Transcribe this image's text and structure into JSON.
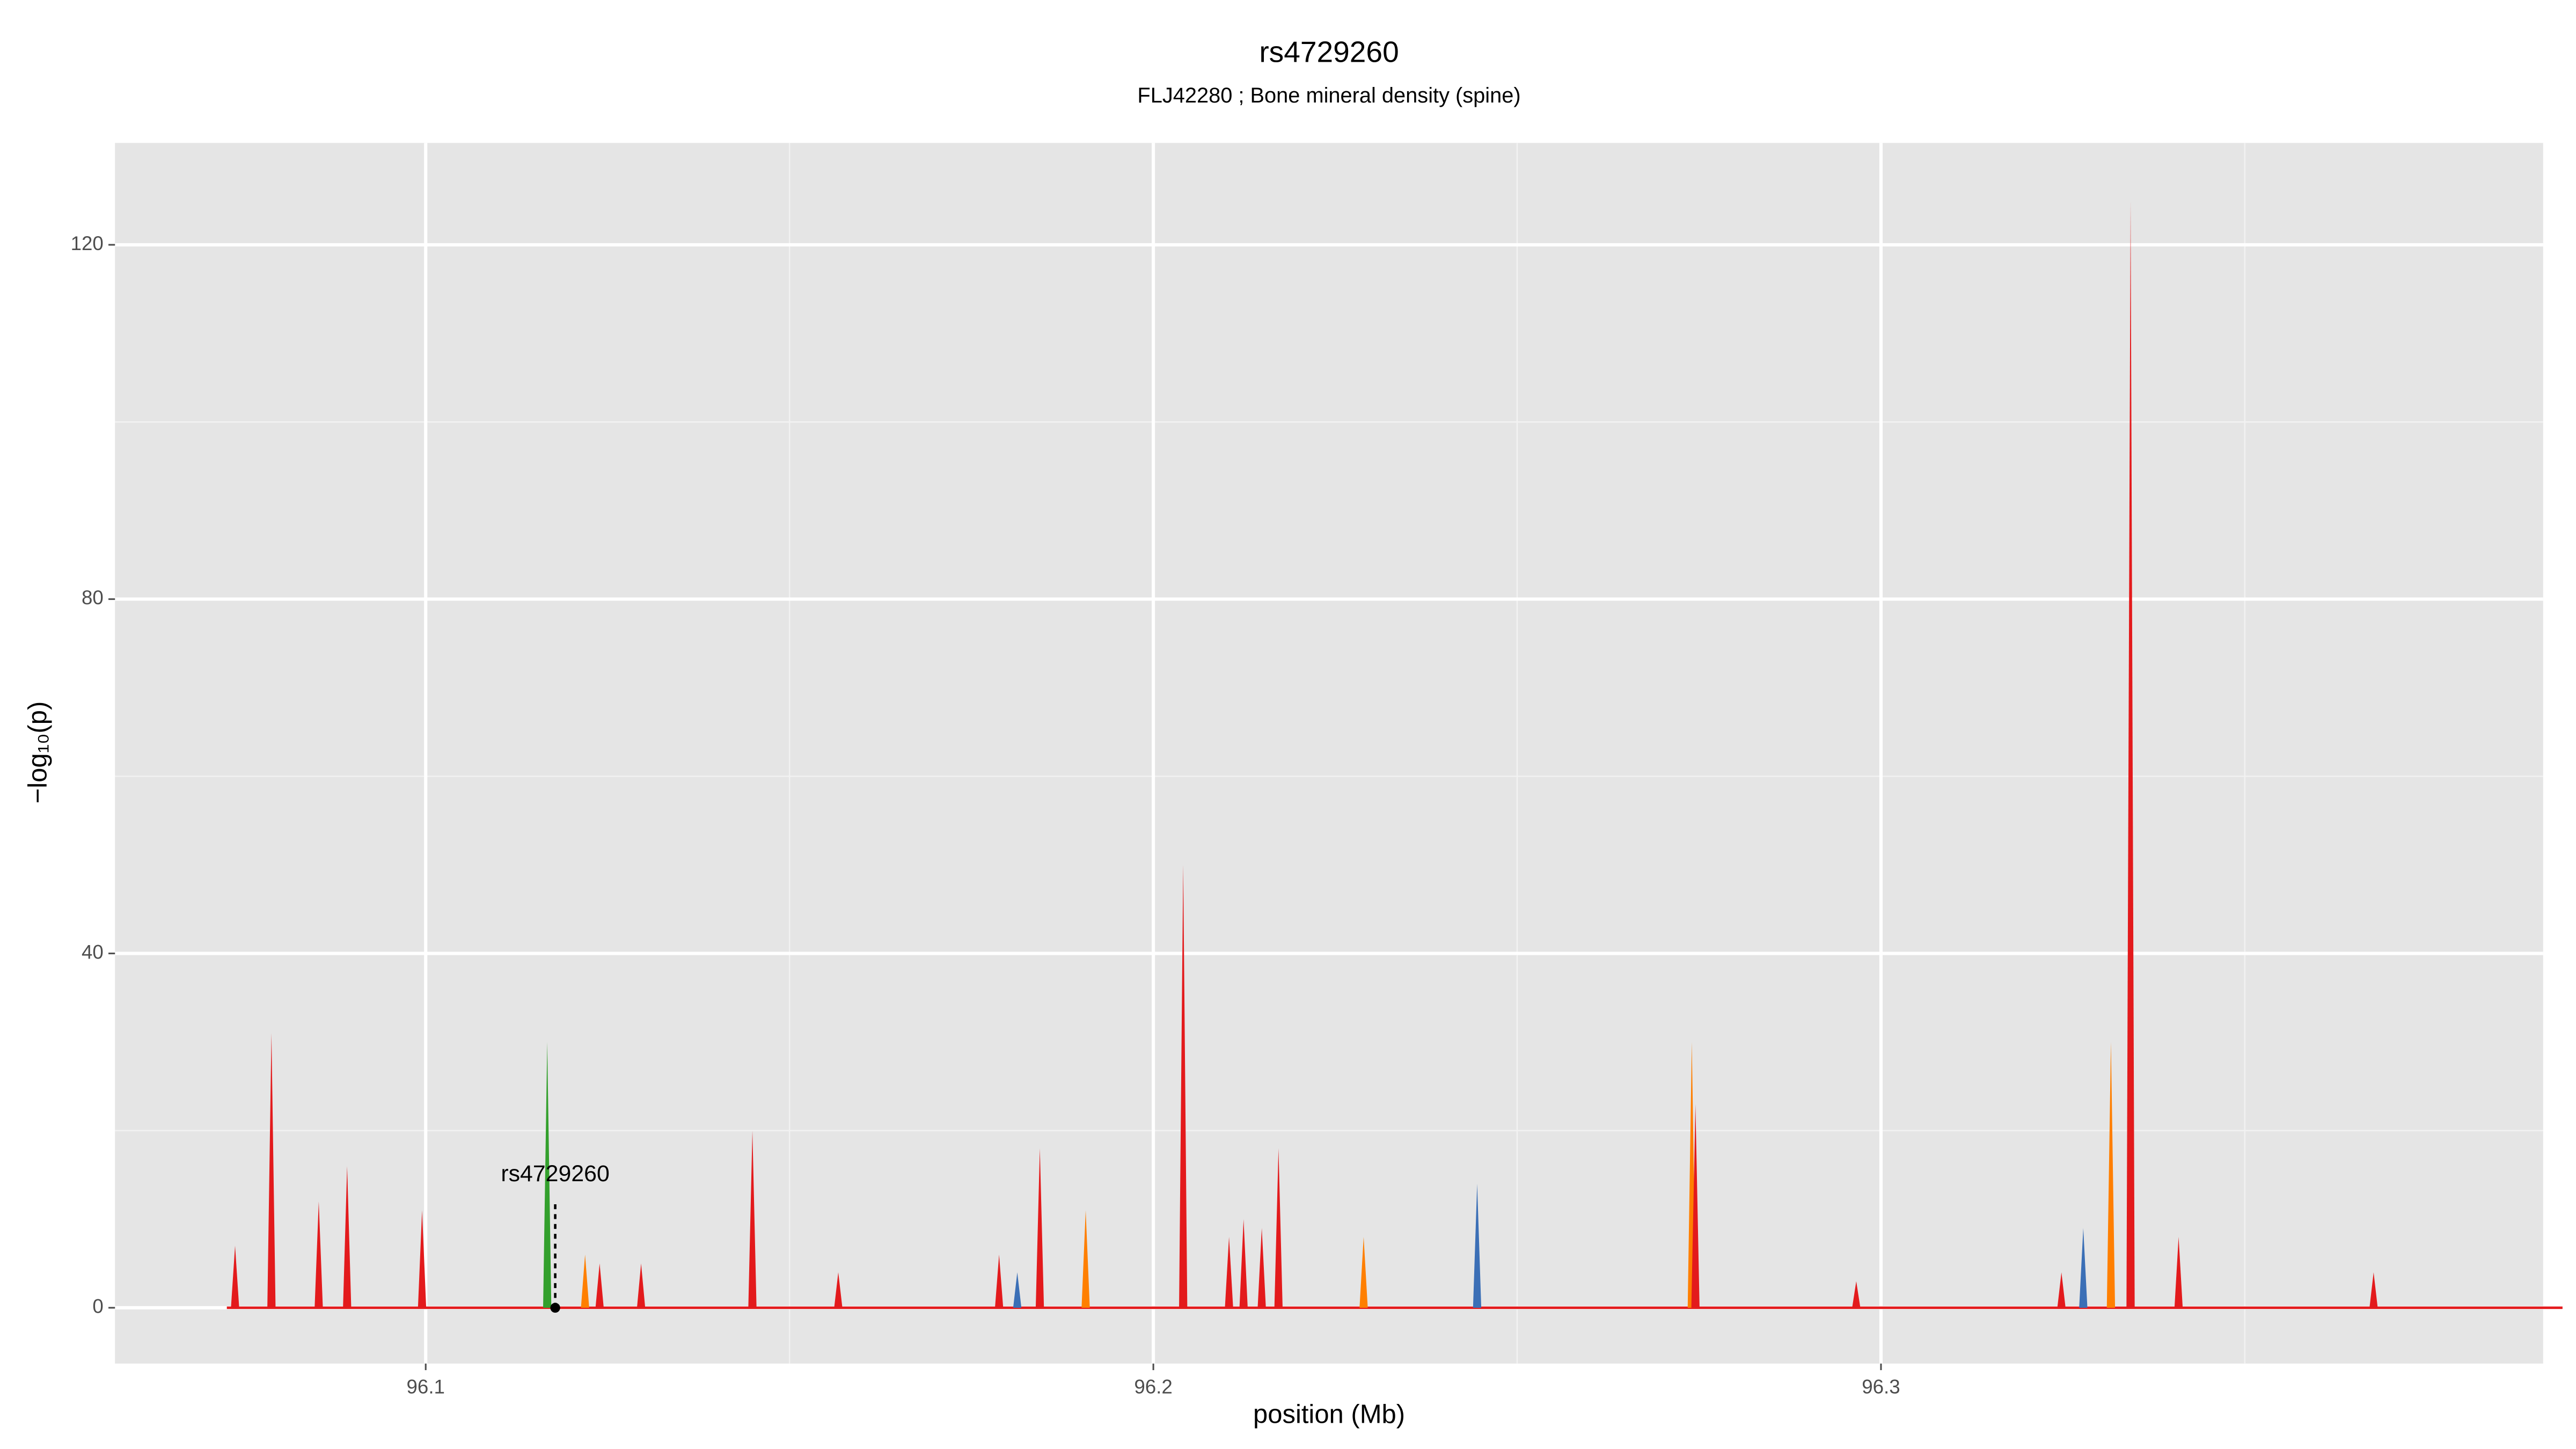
{
  "chart_data": {
    "type": "spike",
    "title": "rs4729260",
    "subtitle": "FLJ42280 ; Bone mineral density (spine)",
    "xlabel": "position (Mb)",
    "ylabel": "−log₁₀(p)",
    "x": [
      96.0738,
      96.0788,
      96.0853,
      96.0892,
      96.0995,
      96.1167,
      96.1219,
      96.1239,
      96.1296,
      96.1449,
      96.1567,
      96.1788,
      96.1813,
      96.1844,
      96.1907,
      96.2041,
      96.2104,
      96.2124,
      96.2149,
      96.2172,
      96.2289,
      96.2445,
      96.274,
      96.2745,
      96.2966,
      96.3248,
      96.3278,
      96.3316,
      96.3343,
      96.3409,
      96.3677
    ],
    "values": [
      7,
      31,
      12,
      16,
      11,
      30,
      6,
      5,
      5,
      20,
      4,
      6,
      4,
      18,
      11,
      50,
      8,
      10,
      9,
      18,
      8,
      14,
      30,
      23,
      3,
      4,
      9,
      30,
      125,
      8,
      4
    ],
    "colors": [
      "#e31a1c",
      "#e31a1c",
      "#e31a1c",
      "#e31a1c",
      "#e31a1c",
      "#33a02c",
      "#ff7f00",
      "#e31a1c",
      "#e31a1c",
      "#e31a1c",
      "#e31a1c",
      "#e31a1c",
      "#3b6fb6",
      "#e31a1c",
      "#ff7f00",
      "#e31a1c",
      "#e31a1c",
      "#e31a1c",
      "#e31a1c",
      "#e31a1c",
      "#ff7f00",
      "#3b6fb6",
      "#ff7f00",
      "#e31a1c",
      "#e31a1c",
      "#e31a1c",
      "#3b6fb6",
      "#ff7f00",
      "#e31a1c",
      "#e31a1c",
      "#e31a1c"
    ],
    "xlim": [
      96.0573,
      96.391
    ],
    "ylim": [
      -6.3,
      131.5
    ],
    "xticks": [
      96.1,
      96.2,
      96.3
    ],
    "yticks": [
      0,
      40,
      80,
      120
    ],
    "xminor": [
      96.15,
      96.25,
      96.35
    ],
    "yminor": [
      20,
      60,
      100
    ],
    "grid": true,
    "annotation": {
      "text": "rs4729260",
      "x": 96.1178,
      "y": 12
    }
  }
}
